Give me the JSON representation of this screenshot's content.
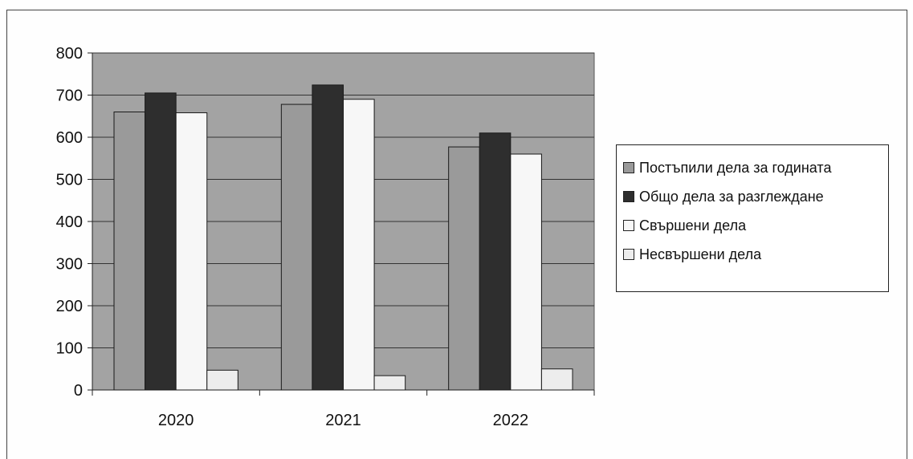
{
  "chart_data": {
    "type": "bar",
    "categories": [
      "2020",
      "2021",
      "2022"
    ],
    "series": [
      {
        "name": "Постъпили  дела за годината",
        "values": [
          660,
          678,
          577
        ],
        "color": "#9a9a9a"
      },
      {
        "name": "Общо дела за разглеждане",
        "values": [
          705,
          724,
          610
        ],
        "color": "#2e2e2e"
      },
      {
        "name": "Свършени дела",
        "values": [
          658,
          690,
          560
        ],
        "color": "#f7f7f7"
      },
      {
        "name": "Несвършени дела",
        "values": [
          47,
          34,
          50
        ],
        "color": "#ededed"
      }
    ],
    "yticks": [
      "0",
      "100",
      "200",
      "300",
      "400",
      "500",
      "600",
      "700",
      "800"
    ],
    "ylim": [
      0,
      800
    ],
    "grid": true,
    "plot_background": "#a3a3a3",
    "legend_position": "right"
  }
}
